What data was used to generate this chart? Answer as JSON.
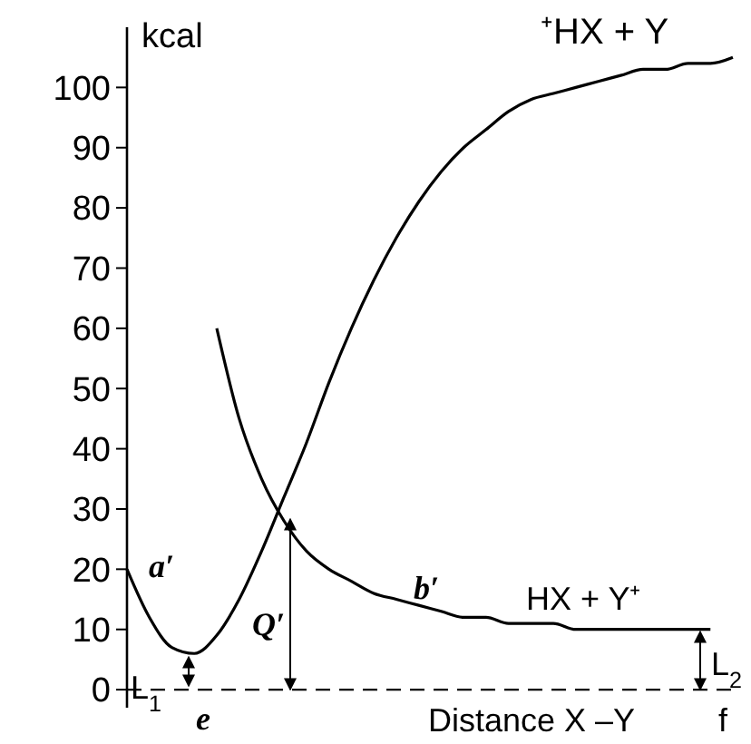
{
  "chart_data": {
    "type": "line",
    "ylabel": "kcal",
    "xlabel": "Distance X –Y",
    "categories": [
      null,
      null,
      null,
      null,
      null,
      null,
      null,
      null,
      null,
      null,
      null,
      null,
      null,
      null,
      null,
      null,
      null,
      null,
      null,
      null,
      null,
      null,
      null,
      null,
      null,
      null,
      null,
      null
    ],
    "series": [
      {
        "color": "#000000",
        "values": [
          20,
          12,
          7,
          6,
          9,
          15,
          23,
          32,
          41,
          51,
          60,
          68,
          75,
          81,
          86,
          90,
          93,
          96,
          98,
          99,
          100,
          101,
          102,
          103,
          103,
          104,
          104,
          105
        ]
      },
      {
        "color": "#000000",
        "values": [
          null,
          null,
          null,
          null,
          60,
          45,
          35,
          28,
          23,
          20,
          18,
          16,
          15,
          14,
          13,
          12,
          12,
          11,
          11,
          11,
          10,
          10,
          10,
          10,
          10,
          10,
          10,
          null
        ]
      }
    ],
    "ylim": [
      -3,
      110
    ],
    "yticks": [
      0,
      10,
      20,
      30,
      40,
      50,
      60,
      70,
      80,
      90,
      100
    ],
    "tick_labels": "y",
    "grid": false,
    "line_style": "solid",
    "ref_lines": [
      {
        "axis": "y",
        "value": 0,
        "line_style": "dashed"
      }
    ],
    "annotations": [
      "⁺HX + Y",
      "HX + Y⁺",
      "a′",
      "b′",
      "e",
      "Q′",
      "L$_{1}$",
      "L$_{2}$",
      "f"
    ]
  }
}
